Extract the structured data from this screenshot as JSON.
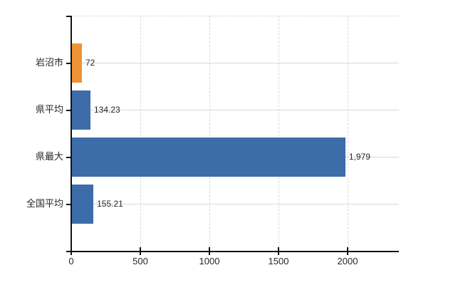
{
  "chart_data": {
    "type": "bar",
    "orientation": "horizontal",
    "title": "",
    "categories": [
      "岩沼市",
      "県平均",
      "県最大",
      "全国平均"
    ],
    "values": [
      72,
      134.23,
      1979,
      155.21
    ],
    "value_labels": [
      "72",
      "134.23",
      "1,979",
      "155.21"
    ],
    "series": [
      {
        "name": "value",
        "values": [
          72,
          134.23,
          1979,
          155.21
        ],
        "colors": [
          "#EE9336",
          "#3D6DA8",
          "#3D6DA8",
          "#3D6DA8"
        ]
      }
    ],
    "xlabel": "",
    "ylabel": "",
    "x_ticks": [
      0,
      500,
      1000,
      1500,
      2000
    ],
    "x_tick_labels": [
      "0",
      "500",
      "1000",
      "1500",
      "2000"
    ],
    "xlim": [
      0,
      2371
    ],
    "grid": true,
    "legend": false,
    "colors": {
      "bar_highlight": "#EE9336",
      "bar_default": "#3D6DA8",
      "grid": "#D5DAD5",
      "axis": "#111111",
      "text": "#262626"
    }
  }
}
